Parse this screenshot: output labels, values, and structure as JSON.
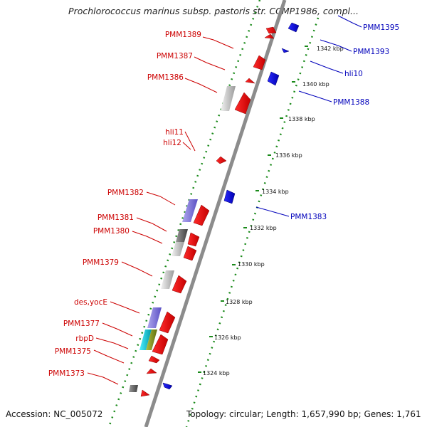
{
  "title": "Prochlorococcus marinus subsp. pastoris str. CCMP1986, compl...",
  "footer": {
    "accession": "Accession: NC_005072",
    "topology": "Topology: circular; Length: 1,657,990 bp; Genes: 1,761"
  },
  "colors": {
    "forward_label": "#cc0000",
    "reverse_label": "#0000bb",
    "forward_gene": "#ff0000",
    "reverse_gene": "#0000ff",
    "backbone": "#8c8c8c",
    "ruler": "#1a8a1a"
  },
  "ticks": [
    "1324 kbp",
    "1326 kbp",
    "1328 kbp",
    "1330 kbp",
    "1332 kbp",
    "1334 kbp",
    "1336 kbp",
    "1338 kbp",
    "1340 kbp",
    "1342 kbp"
  ],
  "forward_labels": [
    "PMM1389",
    "PMM1387",
    "PMM1386",
    "hli11",
    "hli12",
    "PMM1382",
    "PMM1381",
    "PMM1380",
    "PMM1379",
    "des,yocE",
    "PMM1377",
    "rbpD",
    "PMM1375",
    "PMM1373"
  ],
  "reverse_labels": [
    "PMM1395",
    "PMM1393",
    "hli10",
    "PMM1388",
    "PMM1383"
  ]
}
